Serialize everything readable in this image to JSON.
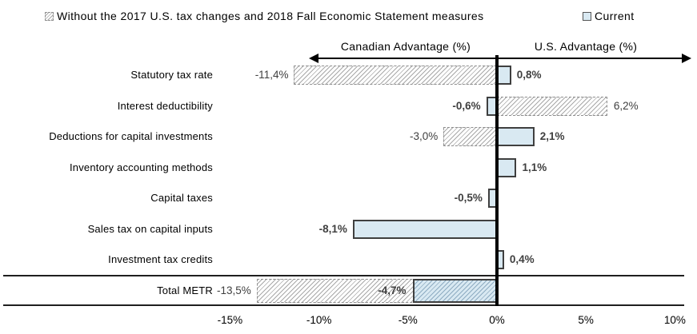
{
  "colors": {
    "current_fill": "#d9e9f2",
    "bar_border": "#3f3f3f",
    "hatch_line": "#a8a8a8",
    "hatch_border": "#8f8f8f",
    "value_label_color": "#3f3f3f",
    "axis_color": "#000000"
  },
  "chart_data": {
    "type": "bar",
    "orientation": "horizontal",
    "title": "",
    "legend_position": "top",
    "grid": false,
    "axis_top": {
      "left_label": "Canadian Advantage (%)",
      "right_label": "U.S. Advantage (%)"
    },
    "legend": [
      {
        "name": "Without the 2017 U.S. tax changes and 2018 Fall Economic Statement measures",
        "style": "hatched-white"
      },
      {
        "name": "Current",
        "style": "solid-lightblue"
      }
    ],
    "categories": [
      "Statutory tax rate",
      "Interest deductibility",
      "Deductions for capital investments",
      "Inventory accounting methods",
      "Capital taxes",
      "Sales tax on capital inputs",
      "Investment tax credits",
      "Total METR"
    ],
    "series": [
      {
        "name": "Without the 2017 U.S. tax changes and 2018 Fall Economic Statement measures",
        "values": [
          -11.4,
          6.2,
          -3.0,
          null,
          null,
          null,
          null,
          -13.5
        ]
      },
      {
        "name": "Current",
        "values": [
          0.8,
          -0.6,
          2.1,
          1.1,
          -0.5,
          -8.1,
          0.4,
          -4.7
        ]
      }
    ],
    "value_labels": {
      "without": [
        "-11,4%",
        "6,2%",
        "-3,0%",
        null,
        null,
        null,
        null,
        "-13,5%"
      ],
      "current": [
        "0,8%",
        "-0,6%",
        "2,1%",
        "1,1%",
        "-0,5%",
        "-8,1%",
        "0,4%",
        "-4,7%"
      ]
    },
    "x_ticks": [
      "-15%",
      "-10%",
      "-5%",
      "0%",
      "5%",
      "10%"
    ],
    "x_tick_values": [
      -15,
      -10,
      -5,
      0,
      5,
      10
    ],
    "xlim": [
      -17.5,
      10.5
    ],
    "total_row_index": 7
  }
}
